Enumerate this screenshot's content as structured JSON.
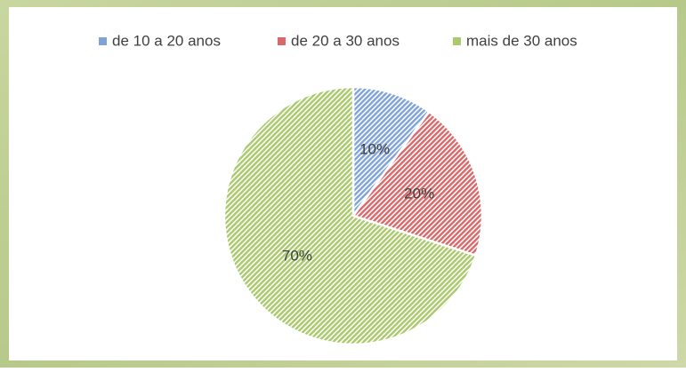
{
  "chart_data": {
    "type": "pie",
    "categories": [
      "de 10 a 20 anos",
      "de 20 a 30 anos",
      "mais de 30 anos"
    ],
    "values": [
      10,
      20,
      70
    ],
    "value_labels": [
      "10%",
      "20%",
      "70%"
    ],
    "colors": [
      "#7fa3d9",
      "#d9686a",
      "#a9c96a"
    ],
    "legend": "top"
  }
}
